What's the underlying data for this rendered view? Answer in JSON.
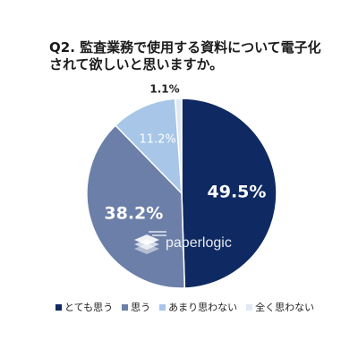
{
  "title": {
    "line1": "Q2.  監査業務で使用する資料について電子化",
    "line2": "されて欲しいと思いますか。"
  },
  "watermark": {
    "text": "paperlogic",
    "icon": "paperlogic-logo-icon"
  },
  "colors": {
    "c0": "#0f2a62",
    "c1": "#6b7fa8",
    "c2": "#a7c6e8",
    "c3": "#dfe8f3"
  },
  "chart_data": {
    "type": "pie",
    "categories": [
      "とても思う",
      "思う",
      "あまり思わない",
      "全く思わない"
    ],
    "values": [
      49.5,
      38.2,
      11.2,
      1.1
    ],
    "data_labels": [
      "49.5%",
      "38.2%",
      "11.2%",
      "1.1%"
    ],
    "legend": "bottom",
    "start": "12 o'clock, clockwise"
  }
}
